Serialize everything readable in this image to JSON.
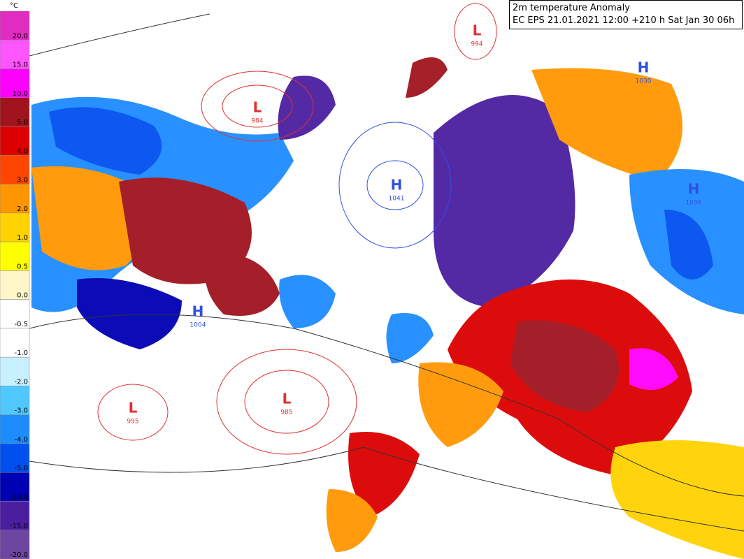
{
  "title": {
    "line1": "2m temperature Anomaly",
    "line2": "EC EPS 21.01.2021 12:00 +210 h Sat Jan 30 06h"
  },
  "legend": {
    "unit": "°C",
    "bands": [
      {
        "label": "20.0",
        "color": "#e02cc0"
      },
      {
        "label": "15.0",
        "color": "#ff55ff"
      },
      {
        "label": "10.0",
        "color": "#ff00ff"
      },
      {
        "label": "5.0",
        "color": "#a0141e"
      },
      {
        "label": "4.0",
        "color": "#dc0000"
      },
      {
        "label": "3.0",
        "color": "#ff4600"
      },
      {
        "label": "2.0",
        "color": "#ff9600"
      },
      {
        "label": "1.0",
        "color": "#ffd200"
      },
      {
        "label": "0.5",
        "color": "#ffff00"
      },
      {
        "label": "0.0",
        "color": "#fff5c8"
      },
      {
        "label": "-0.5",
        "color": "#ffffff"
      },
      {
        "label": "-1.0",
        "color": "#ffffff"
      },
      {
        "label": "-2.0",
        "color": "#c8f0ff"
      },
      {
        "label": "-3.0",
        "color": "#50c8ff"
      },
      {
        "label": "-4.0",
        "color": "#1e8cff"
      },
      {
        "label": "-5.0",
        "color": "#0050f0"
      },
      {
        "label": "-10.0",
        "color": "#0000b4"
      },
      {
        "label": "-15.0",
        "color": "#4b1ea0"
      },
      {
        "label": "-20.0",
        "color": "#6e46a0"
      }
    ]
  },
  "pressure_centers": [
    {
      "kind": "L",
      "value": "984"
    },
    {
      "kind": "L",
      "value": "995"
    },
    {
      "kind": "L",
      "value": "985"
    },
    {
      "kind": "L",
      "value": "994"
    },
    {
      "kind": "H",
      "value": "1041"
    },
    {
      "kind": "H",
      "value": "1004"
    },
    {
      "kind": "H",
      "value": "1030"
    },
    {
      "kind": "H",
      "value": "1036"
    }
  ]
}
